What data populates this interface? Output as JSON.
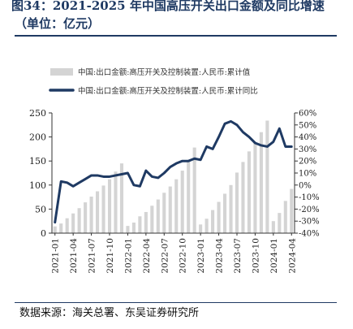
{
  "figure": {
    "title": "图34：2021-2025 年中国高压开关出口金额及同比增速",
    "subtitle": "（单位：亿元）",
    "source": "数据来源：海关总署、东吴证券研究所"
  },
  "colors": {
    "bar": "#d4d4d4",
    "line": "#1f3a63",
    "axis": "#333333"
  },
  "chart_data": {
    "type": "bar+line",
    "categories": [
      "2021-01",
      "2021-02",
      "2021-03",
      "2021-04",
      "2021-05",
      "2021-06",
      "2021-07",
      "2021-08",
      "2021-09",
      "2021-10",
      "2021-11",
      "2021-12",
      "2022-01",
      "2022-02",
      "2022-03",
      "2022-04",
      "2022-05",
      "2022-06",
      "2022-07",
      "2022-08",
      "2022-09",
      "2022-10",
      "2022-11",
      "2022-12",
      "2023-01",
      "2023-02",
      "2023-03",
      "2023-04",
      "2023-05",
      "2023-06",
      "2023-07",
      "2023-08",
      "2023-09",
      "2023-10",
      "2023-11",
      "2023-12",
      "2024-01",
      "2024-02",
      "2024-03",
      "2024-04"
    ],
    "x_tick_labels": [
      "2021-01",
      "2021-04",
      "2021-07",
      "2021-10",
      "2022-01",
      "2022-04",
      "2022-07",
      "2022-10",
      "2023-01",
      "2023-04",
      "2023-07",
      "2023-10",
      "2024-01",
      "2024-04"
    ],
    "x_tick_every": 3,
    "series": [
      {
        "name": "中国:出口金额:高压开关及控制装置:人民币:累计值",
        "type": "bar",
        "axis": "left",
        "values": [
          14,
          20,
          31,
          41,
          52,
          64,
          76,
          87,
          99,
          112,
          128,
          145,
          15,
          22,
          35,
          44,
          57,
          70,
          84,
          97,
          112,
          130,
          150,
          178,
          18,
          30,
          48,
          65,
          82,
          100,
          126,
          148,
          170,
          187,
          210,
          234,
          25,
          42,
          67,
          92
        ]
      },
      {
        "name": "中国:出口金额:高压开关及控制装置:人民币:累计同比",
        "type": "line",
        "axis": "right",
        "values": [
          -31,
          3,
          2,
          -1,
          2,
          5,
          8,
          8,
          7,
          7,
          8,
          9,
          10,
          0,
          -1,
          12,
          7,
          6,
          10,
          15,
          18,
          20,
          20,
          22,
          21,
          32,
          30,
          40,
          51,
          53,
          50,
          44,
          40,
          35,
          33,
          32,
          36,
          47,
          32,
          32
        ]
      }
    ],
    "y_left": {
      "min": 0,
      "max": 250,
      "ticks": [
        0,
        50,
        100,
        150,
        200,
        250
      ]
    },
    "y_right": {
      "min": -40,
      "max": 60,
      "ticks": [
        "60%",
        "50%",
        "40%",
        "30%",
        "20%",
        "10%",
        "0%",
        "-10%",
        "-20%",
        "-30%",
        "-40%"
      ]
    },
    "legend_position": "top-left",
    "grid": false
  }
}
